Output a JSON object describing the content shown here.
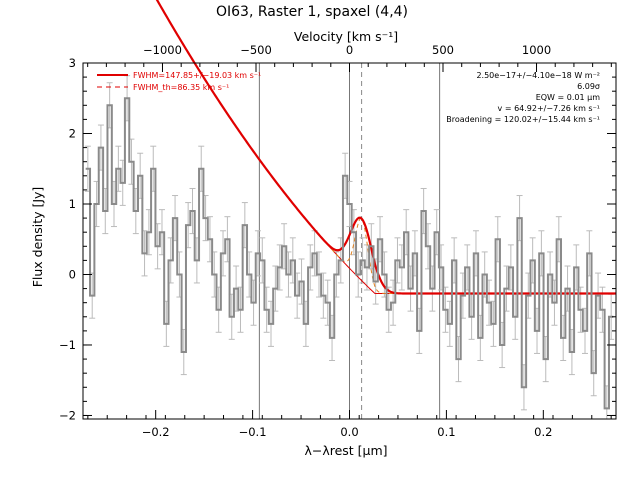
{
  "chart_data": {
    "type": "line",
    "title": "OI63, Raster 1, spaxel (4,4)",
    "xlabel": "λ−λrest [μm]",
    "ylabel": "Flux density [Jy]",
    "top_xlabel": "Velocity [km s⁻¹]",
    "xlim": [
      -0.275,
      0.275
    ],
    "ylim": [
      -2.05,
      3.0
    ],
    "top_xlim": [
      -1425,
      1425
    ],
    "x_ticks": [
      -0.2,
      -0.1,
      0.0,
      0.1,
      0.2
    ],
    "x_tick_labels": [
      "−0.2",
      "−0.1",
      "0.0",
      "0.1",
      "0.2"
    ],
    "y_ticks": [
      -2,
      -1,
      0,
      1,
      2,
      3
    ],
    "y_tick_labels": [
      "−2",
      "−1",
      "0",
      "1",
      "2",
      "3"
    ],
    "top_ticks": [
      -1000,
      -500,
      0,
      500,
      1000
    ],
    "top_tick_labels": [
      "−1000",
      "−500",
      "0",
      "500",
      "1000"
    ],
    "vlines_solid_x": [
      -0.093,
      0.0,
      0.093
    ],
    "vline_dashed_x": 0.0125,
    "legend": {
      "placement": "top-left",
      "items": [
        {
          "label": "FWHM=147.85+/−19.03 km s⁻¹",
          "style": "solid",
          "color": "#e00000"
        },
        {
          "label": "FWHM_th=86.35 km s⁻¹",
          "style": "dashed",
          "color": "#e00000"
        }
      ]
    },
    "annotations": {
      "placement": "top-right",
      "lines": [
        "2.50e−17+/−4.10e−18 W m⁻²",
        "6.09σ",
        "EQW = 0.01 μm",
        "v = 64.92+/−7.26 km s⁻¹",
        "Broadening = 120.02+/−15.44 km s⁻¹"
      ]
    },
    "data_step": {
      "x": [
        -0.27,
        -0.2655,
        -0.261,
        -0.2565,
        -0.252,
        -0.2475,
        -0.243,
        -0.2385,
        -0.234,
        -0.2295,
        -0.225,
        -0.2205,
        -0.216,
        -0.2115,
        -0.207,
        -0.2025,
        -0.198,
        -0.1935,
        -0.189,
        -0.1845,
        -0.18,
        -0.1755,
        -0.171,
        -0.1665,
        -0.162,
        -0.1575,
        -0.153,
        -0.1485,
        -0.144,
        -0.1395,
        -0.135,
        -0.1305,
        -0.126,
        -0.1215,
        -0.117,
        -0.1125,
        -0.108,
        -0.1035,
        -0.099,
        -0.0945,
        -0.09,
        -0.0855,
        -0.081,
        -0.0765,
        -0.072,
        -0.0675,
        -0.063,
        -0.0585,
        -0.054,
        -0.0495,
        -0.045,
        -0.0405,
        -0.036,
        -0.0315,
        -0.027,
        -0.0225,
        -0.018,
        -0.0135,
        -0.009,
        -0.0045,
        0.0,
        0.0045,
        0.009,
        0.0135,
        0.018,
        0.0225,
        0.027,
        0.0315,
        0.036,
        0.0405,
        0.045,
        0.0495,
        0.054,
        0.0585,
        0.063,
        0.0675,
        0.072,
        0.0765,
        0.081,
        0.0855,
        0.09,
        0.0945,
        0.099,
        0.1035,
        0.108,
        0.1125,
        0.117,
        0.1215,
        0.126,
        0.1305,
        0.135,
        0.1395,
        0.144,
        0.1485,
        0.153,
        0.1575,
        0.162,
        0.1665,
        0.171,
        0.1755,
        0.18,
        0.1845,
        0.189,
        0.1935,
        0.198,
        0.2025,
        0.207,
        0.2115,
        0.216,
        0.2205,
        0.225,
        0.2295,
        0.234,
        0.2385,
        0.243,
        0.2475,
        0.252,
        0.2565,
        0.261,
        0.2655,
        0.27
      ],
      "y": [
        1.5,
        -0.3,
        1.0,
        1.8,
        0.9,
        2.4,
        1.0,
        1.5,
        1.3,
        2.5,
        1.6,
        0.9,
        1.4,
        0.3,
        0.6,
        1.5,
        0.4,
        0.6,
        -0.7,
        0.2,
        0.8,
        0.0,
        -1.1,
        0.7,
        0.9,
        0.2,
        1.5,
        0.8,
        0.5,
        0.0,
        -0.5,
        0.3,
        0.5,
        -0.6,
        -0.2,
        -0.5,
        0.7,
        0.0,
        -0.4,
        0.3,
        0.2,
        -0.5,
        -0.7,
        -0.2,
        0.1,
        0.4,
        0.0,
        0.2,
        -0.3,
        -0.1,
        -0.7,
        0.1,
        0.3,
        0.0,
        -0.3,
        -0.4,
        -0.9,
        0.0,
        0.2,
        1.4,
        1.0,
        0.6,
        0.0,
        0.2,
        0.1,
        0.4,
        -0.1,
        0.5,
        0.0,
        -0.5,
        -0.4,
        0.2,
        0.1,
        0.6,
        -0.2,
        0.3,
        -0.8,
        0.9,
        0.4,
        -0.2,
        0.6,
        0.1,
        -0.5,
        -0.7,
        0.2,
        -1.2,
        -0.3,
        0.1,
        -0.6,
        0.3,
        -0.9,
        0.0,
        -0.4,
        -0.7,
        0.5,
        -1.0,
        -0.2,
        0.1,
        -0.6,
        0.8,
        -1.6,
        -0.3,
        0.2,
        -0.8,
        0.3,
        -1.2,
        0.0,
        -0.4,
        0.5,
        -0.9,
        -0.2,
        -1.1,
        0.1,
        -0.5,
        -0.8,
        0.3,
        -1.4,
        -0.3,
        -0.5,
        -1.9,
        -0.6
      ],
      "err": 0.32
    },
    "fit": {
      "baseline": "0.00245*(x*100)^2 - 0.143*(x*100) + 0.088 (clipped near -0.27 at right)",
      "gaussian": {
        "center": 0.0125,
        "sigma": 0.0112,
        "amplitude": 0.88
      },
      "color": "#e00000"
    }
  }
}
